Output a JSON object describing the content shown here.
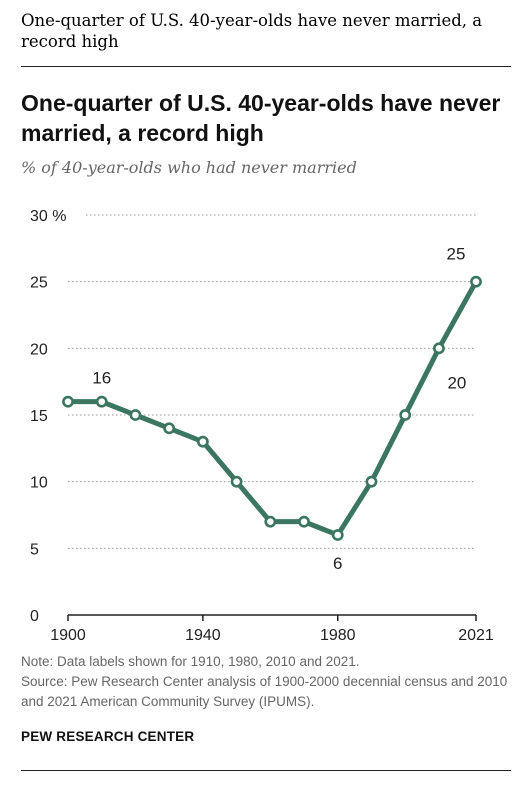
{
  "caption": "One-quarter of U.S. 40-year-olds have never married, a record high",
  "title": "One-quarter of U.S. 40-year-olds have never married, a record high",
  "subtitle": "% of 40-year-olds who had never married",
  "note": "Note: Data labels shown for 1910, 1980, 2010 and 2021.",
  "source": "Source: Pew Research Center analysis of 1900-2000 decennial census and 2010 and 2021 American Community Survey (IPUMS).",
  "brand": "PEW RESEARCH CENTER",
  "colors": {
    "line": "#3a7660",
    "grid": "#999999",
    "axis": "#222222",
    "text": "#222222"
  },
  "chart_data": {
    "type": "line",
    "title": "One-quarter of U.S. 40-year-olds have never married, a record high",
    "ylabel": "% of 40-year-olds who had never married",
    "xlabel": "",
    "x_tick_labels": [
      "1900",
      "1940",
      "1980",
      "2021"
    ],
    "y_tick_labels": [
      "0",
      "5",
      "10",
      "15",
      "20",
      "25",
      "30 %"
    ],
    "ylim": [
      0,
      30
    ],
    "xlim": [
      1900,
      2021
    ],
    "grid": true,
    "series": [
      {
        "x": [
          1900,
          1910,
          1920,
          1930,
          1940,
          1950,
          1960,
          1970,
          1980,
          1990,
          2000,
          2010,
          2021
        ],
        "values": [
          16,
          16,
          15,
          14,
          13,
          10,
          7,
          7,
          6,
          10,
          15,
          20,
          25
        ]
      }
    ],
    "data_labels": [
      {
        "x": 1910,
        "text": "16"
      },
      {
        "x": 1980,
        "text": "6"
      },
      {
        "x": 2010,
        "text": "20"
      },
      {
        "x": 2021,
        "text": "25"
      }
    ]
  }
}
